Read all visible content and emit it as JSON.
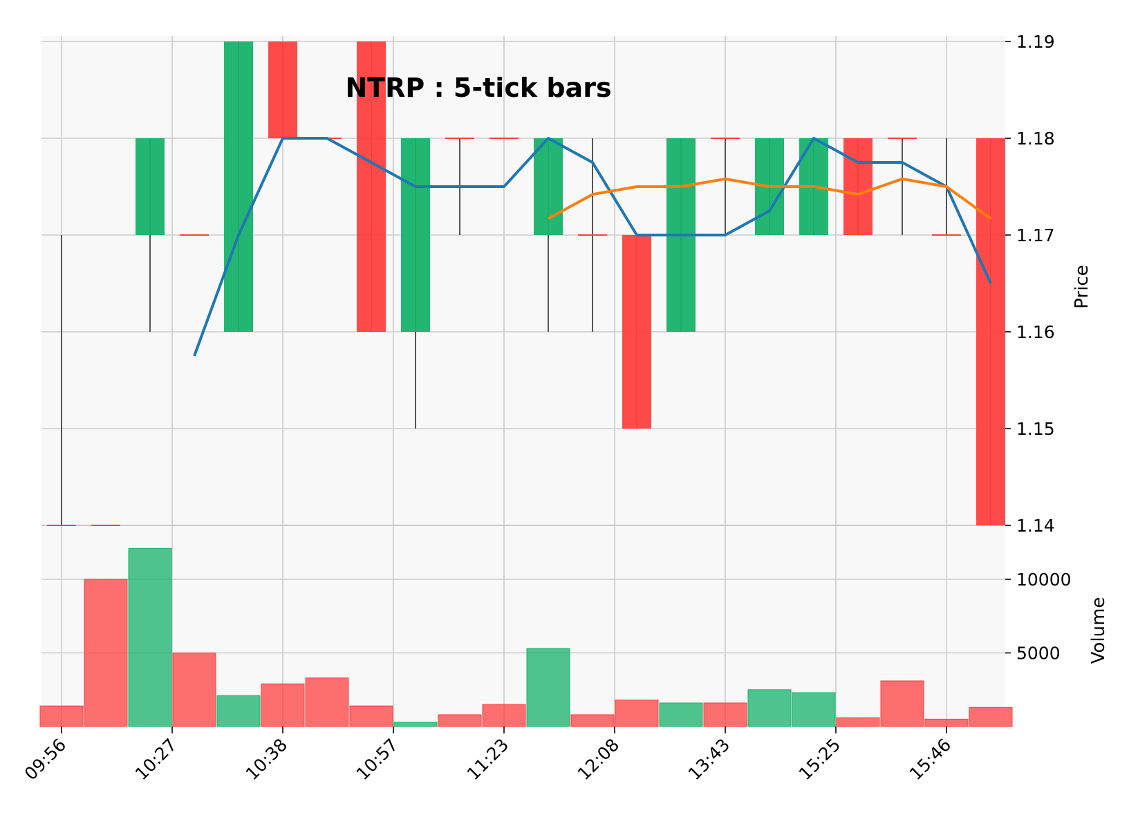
{
  "chart_data": {
    "type": "candlestick",
    "title": "NTRP : 5-tick bars",
    "price_axis": {
      "label": "Price",
      "ylim": [
        1.14,
        1.19
      ],
      "ticks": [
        "1.14",
        "1.15",
        "1.16",
        "1.17",
        "1.18",
        "1.19"
      ]
    },
    "volume_axis": {
      "label": "Volume",
      "ticks": [
        "5000",
        "10000"
      ]
    },
    "x_tick_labels": [
      "09:56",
      "10:27",
      "10:38",
      "10:57",
      "11:23",
      "12:08",
      "13:43",
      "15:25",
      "15:46"
    ],
    "up_color": "#17b26a",
    "down_color": "#ff4040",
    "candles": [
      {
        "o": 1.14,
        "h": 1.17,
        "l": 1.14,
        "c": 1.14,
        "v": 1400
      },
      {
        "o": 1.14,
        "h": 1.14,
        "l": 1.14,
        "c": 1.14,
        "v": 10000
      },
      {
        "o": 1.17,
        "h": 1.18,
        "l": 1.16,
        "c": 1.18,
        "v": 12100
      },
      {
        "o": 1.17,
        "h": 1.17,
        "l": 1.17,
        "c": 1.17,
        "v": 5000
      },
      {
        "o": 1.16,
        "h": 1.19,
        "l": 1.16,
        "c": 1.19,
        "v": 2100
      },
      {
        "o": 1.19,
        "h": 1.19,
        "l": 1.18,
        "c": 1.18,
        "v": 2900
      },
      {
        "o": 1.18,
        "h": 1.18,
        "l": 1.18,
        "c": 1.18,
        "v": 3300
      },
      {
        "o": 1.19,
        "h": 1.19,
        "l": 1.16,
        "c": 1.16,
        "v": 1400
      },
      {
        "o": 1.16,
        "h": 1.18,
        "l": 1.15,
        "c": 1.18,
        "v": 300
      },
      {
        "o": 1.18,
        "h": 1.18,
        "l": 1.17,
        "c": 1.18,
        "v": 800
      },
      {
        "o": 1.18,
        "h": 1.18,
        "l": 1.18,
        "c": 1.18,
        "v": 1500
      },
      {
        "o": 1.17,
        "h": 1.18,
        "l": 1.16,
        "c": 1.18,
        "v": 5300
      },
      {
        "o": 1.17,
        "h": 1.18,
        "l": 1.16,
        "c": 1.17,
        "v": 800
      },
      {
        "o": 1.17,
        "h": 1.17,
        "l": 1.15,
        "c": 1.15,
        "v": 1800
      },
      {
        "o": 1.16,
        "h": 1.18,
        "l": 1.16,
        "c": 1.18,
        "v": 1600
      },
      {
        "o": 1.18,
        "h": 1.18,
        "l": 1.17,
        "c": 1.18,
        "v": 1600
      },
      {
        "o": 1.17,
        "h": 1.18,
        "l": 1.17,
        "c": 1.18,
        "v": 2500
      },
      {
        "o": 1.17,
        "h": 1.18,
        "l": 1.17,
        "c": 1.18,
        "v": 2300
      },
      {
        "o": 1.18,
        "h": 1.18,
        "l": 1.17,
        "c": 1.17,
        "v": 600
      },
      {
        "o": 1.18,
        "h": 1.18,
        "l": 1.17,
        "c": 1.18,
        "v": 3100
      },
      {
        "o": 1.17,
        "h": 1.18,
        "l": 1.17,
        "c": 1.17,
        "v": 500
      },
      {
        "o": 1.18,
        "h": 1.18,
        "l": 1.14,
        "c": 1.14,
        "v": 1300
      }
    ],
    "series": [
      {
        "color": "#1f77b4",
        "values": [
          null,
          null,
          null,
          1.1575,
          1.17,
          1.18,
          1.18,
          1.1775,
          1.175,
          1.175,
          1.175,
          1.18,
          1.1775,
          1.17,
          1.17,
          1.17,
          1.1725,
          1.18,
          1.1775,
          1.1775,
          1.175,
          1.165
        ]
      },
      {
        "color": "#ff7f0e",
        "values": [
          null,
          null,
          null,
          null,
          null,
          null,
          null,
          null,
          null,
          null,
          null,
          1.1717,
          1.1742,
          1.175,
          1.175,
          1.1758,
          1.175,
          1.175,
          1.1742,
          1.1758,
          1.175,
          1.1717
        ]
      }
    ]
  }
}
